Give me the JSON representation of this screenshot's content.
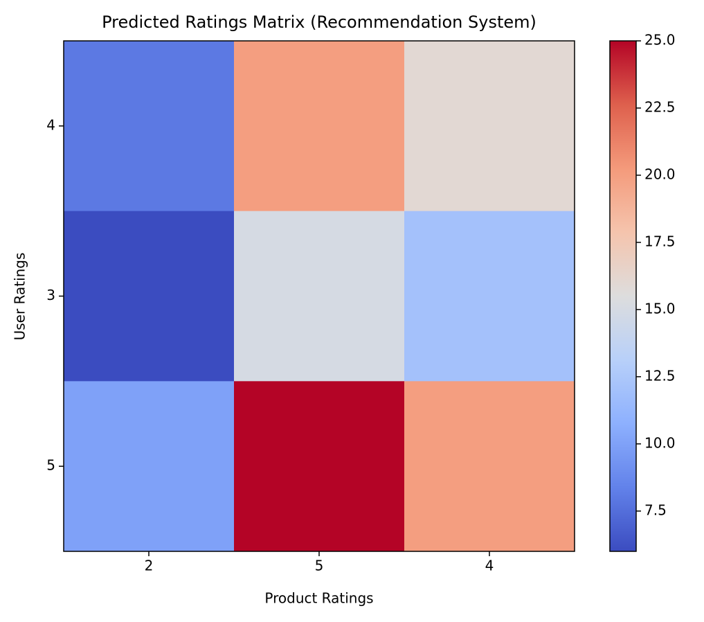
{
  "chart_data": {
    "type": "heatmap",
    "title": "Predicted Ratings Matrix (Recommendation System)",
    "x_label": "Product Ratings",
    "y_label": "User Ratings",
    "categories": [
      "2",
      "5",
      "4"
    ],
    "rows": [
      "4",
      "3",
      "5"
    ],
    "values": [
      [
        8,
        20,
        16
      ],
      [
        6,
        15,
        12
      ],
      [
        10,
        25,
        20
      ]
    ],
    "colormap": "coolwarm",
    "clim": [
      6,
      25
    ],
    "colorbar_ticks": [
      7.5,
      {
        "value": 10,
        "label": "10.0"
      },
      12.5,
      {
        "value": 15,
        "label": "15.0"
      },
      17.5,
      {
        "value": 20,
        "label": "20.0"
      },
      22.5,
      {
        "value": 25,
        "label": "25.0"
      }
    ]
  }
}
